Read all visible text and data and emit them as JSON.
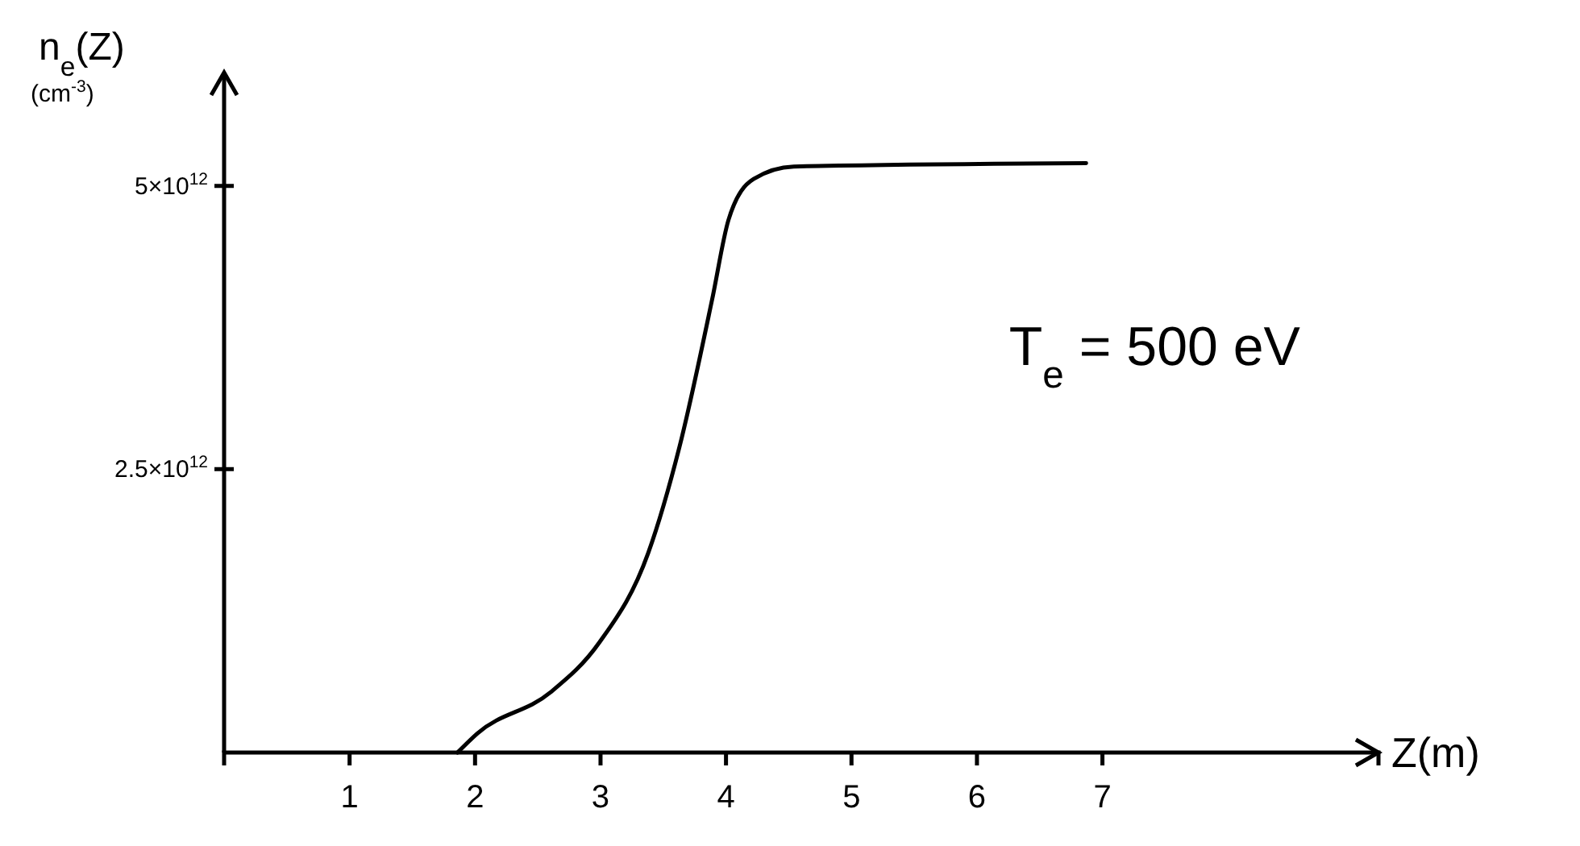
{
  "chart_data": {
    "type": "line",
    "xlabel": "Z(m)",
    "ylabel": "n$_{e}$(Z) (cm$^{-3}$)",
    "x": [
      1.86,
      2.02,
      2.6,
      2.99,
      3.38,
      3.63,
      3.89,
      4.02,
      4.22,
      4.54,
      6.87
    ],
    "series": [
      {
        "color": "#000000",
        "values": [
          0,
          170000000000.0,
          530000000000.0,
          970000000000.0,
          1760000000000.0,
          2700000000000.0,
          4000000000000.0,
          4700000000000.0,
          5060000000000.0,
          5170000000000.0,
          5200000000000.0
        ]
      }
    ],
    "xlim": [
      0,
      9.2
    ],
    "xticks": [
      1,
      2,
      3,
      4,
      5,
      6,
      7
    ],
    "ylim": [
      0,
      6000000000000.0
    ],
    "yticks": [
      {
        "value": 2500000000000.0,
        "label": "2.5×10$^{12}$"
      },
      {
        "value": 5000000000000.0,
        "label": "5×10$^{12}$"
      }
    ],
    "annotations": [
      "T$_{e}$ = 500 eV"
    ],
    "grid": false,
    "line_style": "solid"
  }
}
